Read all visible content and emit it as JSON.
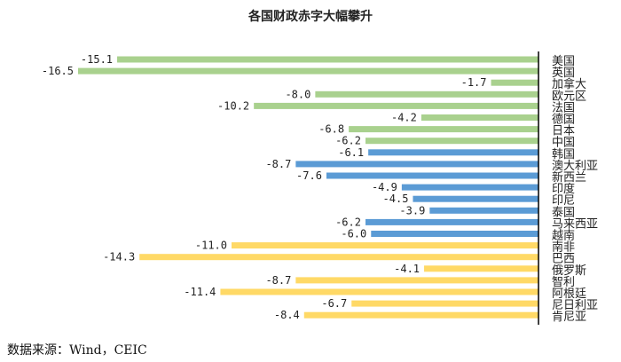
{
  "chart_data": {
    "type": "bar",
    "orientation": "horizontal",
    "title": "各国财政赤字大幅攀升",
    "source": "数据来源：Wind，CEIC",
    "categories": [
      "美国",
      "英国",
      "加拿大",
      "欧元区",
      "法国",
      "德国",
      "日本",
      "中国",
      "韩国",
      "澳大利亚",
      "新西兰",
      "印度",
      "印尼",
      "泰国",
      "马来西亚",
      "越南",
      "南非",
      "巴西",
      "俄罗斯",
      "智利",
      "阿根廷",
      "尼日利亚",
      "肯尼亚"
    ],
    "values": [
      -15.1,
      -16.5,
      -1.7,
      -8.0,
      -10.2,
      -4.2,
      -6.8,
      -6.2,
      -6.1,
      -8.7,
      -7.6,
      -4.9,
      -4.5,
      -3.9,
      -6.2,
      -6.0,
      -11.0,
      -14.3,
      -4.1,
      -8.7,
      -11.4,
      -6.7,
      -8.4
    ],
    "groups": [
      "developed",
      "developed",
      "developed",
      "developed",
      "developed",
      "developed",
      "developed",
      "developed",
      "asia-pacific",
      "asia-pacific",
      "asia-pacific",
      "asia-pacific",
      "asia-pacific",
      "asia-pacific",
      "asia-pacific",
      "asia-pacific",
      "emerging",
      "emerging",
      "emerging",
      "emerging",
      "emerging",
      "emerging",
      "emerging"
    ],
    "colors": {
      "developed": "#a9d18e",
      "asia-pacific": "#5b9bd5",
      "emerging": "#ffd966"
    },
    "xlim": [
      -16.5,
      0
    ],
    "grid": false
  }
}
